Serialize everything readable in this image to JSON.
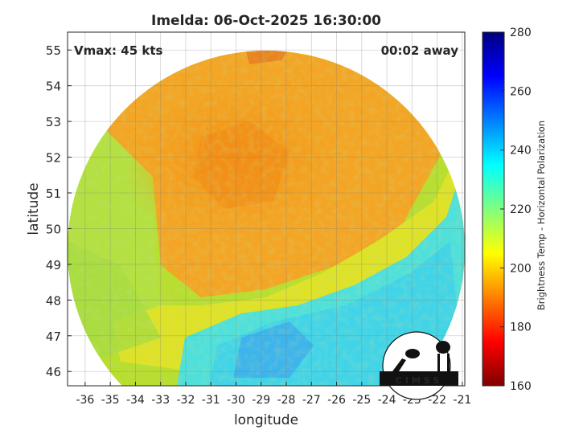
{
  "title": "Imelda: 06-Oct-2025 16:30:00",
  "vmax_text": "Vmax: 45 kts",
  "away_text": "00:02 away",
  "xlabel": "longitude",
  "ylabel": "latitude",
  "colorbar": {
    "label": "Brightness Temp - Horizontal Polarization",
    "ticks": [
      "280",
      "260",
      "240",
      "220",
      "200",
      "180",
      "160"
    ]
  },
  "logo": {
    "text": "CIMSS"
  },
  "map_data": {
    "x_ticks": [
      "-36",
      "-35",
      "-34",
      "-33",
      "-32",
      "-31",
      "-30",
      "-29",
      "-28",
      "-27",
      "-26",
      "-25",
      "-24",
      "-23",
      "-22",
      "-21"
    ],
    "y_ticks": [
      "55",
      "54",
      "53",
      "52",
      "51",
      "50",
      "49",
      "48",
      "47",
      "46"
    ],
    "xlim": [
      -36.7,
      -20.9
    ],
    "ylim": [
      45.6,
      55.5
    ],
    "grid": true,
    "colormap": "jet",
    "clim": [
      160,
      280
    ],
    "swath_shape": "circle",
    "colors": {
      "background_outside_swath": "#ffffff",
      "warm_orange": "#f6a21e",
      "yellow": "#e6e21c",
      "cyan": "#4ae0e6",
      "blue": "#3aa0f0"
    }
  }
}
